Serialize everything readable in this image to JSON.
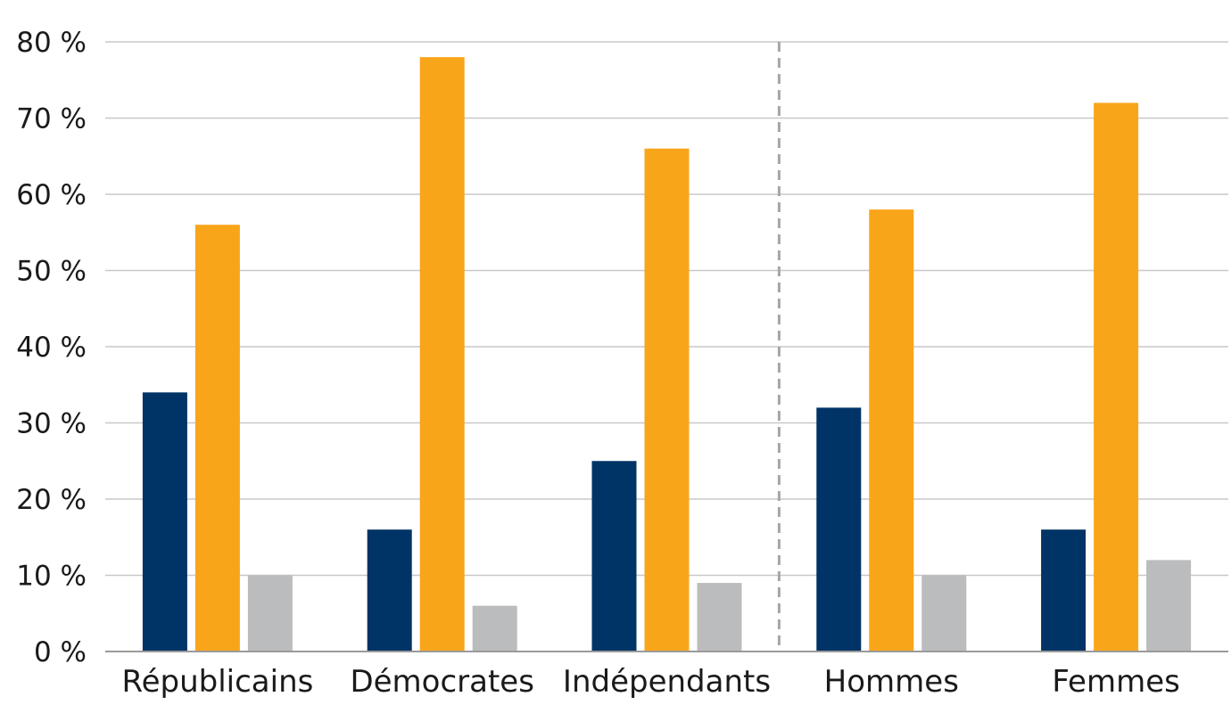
{
  "chart_data": {
    "type": "bar",
    "categories": [
      "Républicains",
      "Démocrates",
      "Indépendants",
      "Hommes",
      "Femmes"
    ],
    "series": [
      {
        "values": [
          34,
          16,
          25,
          32,
          16
        ],
        "color": "#003366"
      },
      {
        "values": [
          56,
          78,
          66,
          58,
          72
        ],
        "color": "#F9A51A"
      },
      {
        "values": [
          10,
          6,
          9,
          10,
          12
        ],
        "color": "#BBBCBE"
      }
    ],
    "ylim": [
      0,
      80
    ],
    "y_ticks": [
      0,
      10,
      20,
      30,
      40,
      50,
      60,
      70,
      80
    ],
    "y_tick_suffix": " %",
    "grid": true,
    "grid_color": "#C8C8C8",
    "separator": {
      "after_category_index": 2,
      "style": "dashed",
      "color": "#A6A6A6"
    },
    "legend": "none"
  }
}
